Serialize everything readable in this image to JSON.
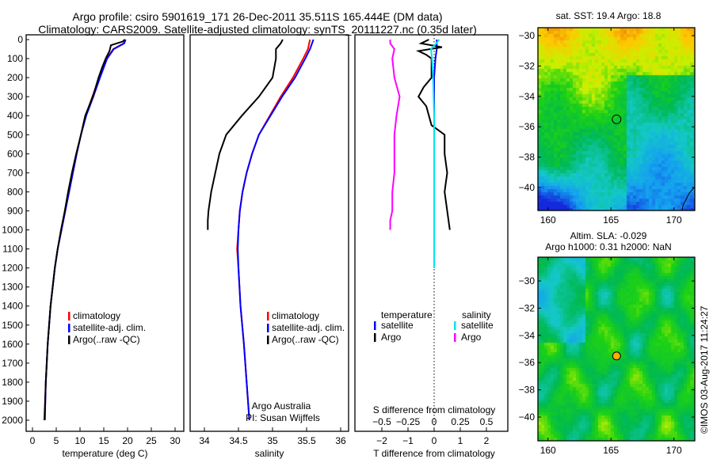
{
  "title_line1": "Argo profile: csiro 5901619_171 26-Dec-2011 35.511S 165.444E (DM data)",
  "title_line2": "Climatology: CARS2009. Satellite-adjusted climatology: synTS_20111227.nc (0.35d later)",
  "credit": "©IMOS 03-Aug-2017 11:24:27",
  "colors": {
    "climatology": "#ff0000",
    "satellite": "#0000ff",
    "argo": "#000000",
    "sal_satellite": "#00e5ee",
    "sal_argo": "#ff00ff"
  },
  "chart_data": [
    {
      "type": "line",
      "name": "temperature",
      "xlabel": "temperature (deg C)",
      "xlim": [
        -1,
        31
      ],
      "ylim": [
        0,
        2100
      ],
      "xticks": [
        0,
        5,
        10,
        15,
        20,
        25,
        30
      ],
      "yticks": [
        0,
        100,
        200,
        300,
        400,
        500,
        600,
        700,
        800,
        900,
        1000,
        1100,
        1200,
        1300,
        1400,
        1500,
        1600,
        1700,
        1800,
        1900,
        2000
      ],
      "legend": [
        "climatology",
        "satellite-adj. clim.",
        "Argo(..raw -QC)"
      ],
      "series": [
        {
          "name": "climatology",
          "depth": [
            0,
            20,
            50,
            100,
            200,
            300,
            400,
            500,
            600,
            700,
            800,
            900,
            1000,
            1100,
            1200,
            1400,
            1600,
            1800,
            2000
          ],
          "values": [
            19.5,
            19.2,
            17,
            15.6,
            14.1,
            12.6,
            11.2,
            10.2,
            9.3,
            8.5,
            7.7,
            6.9,
            6.1,
            5.3,
            4.7,
            3.8,
            3.2,
            2.8,
            2.6
          ]
        },
        {
          "name": "satellite",
          "depth": [
            0,
            20,
            50,
            100,
            200,
            300,
            400,
            500,
            600,
            700,
            800,
            900,
            1000,
            1100,
            1200,
            1400,
            1600,
            1800,
            2000
          ],
          "values": [
            19.6,
            19.3,
            17.1,
            15.7,
            14.2,
            12.8,
            11.3,
            10.2,
            9.3,
            8.5,
            7.7,
            6.9,
            6.1,
            5.3,
            4.7,
            3.8,
            3.2,
            2.8,
            2.6
          ]
        },
        {
          "name": "argo",
          "depth": [
            0,
            10,
            30,
            60,
            100,
            150,
            200,
            300,
            400,
            500,
            600,
            700,
            800,
            900,
            1000,
            1100,
            1200,
            1400,
            1600,
            1800,
            2000
          ],
          "values": [
            19.4,
            19.0,
            16.5,
            16.2,
            15.4,
            14.6,
            13.9,
            12.7,
            11.1,
            10.2,
            9.2,
            8.3,
            7.5,
            6.8,
            6.0,
            5.3,
            4.7,
            3.8,
            3.2,
            2.8,
            2.5
          ]
        }
      ]
    },
    {
      "type": "line",
      "name": "salinity",
      "xlabel": "salinity",
      "xlim": [
        33.8,
        36.1
      ],
      "ylim": [
        0,
        2100
      ],
      "xticks": [
        34,
        34.5,
        35,
        35.5,
        36
      ],
      "legend": [
        "climatology",
        "satellite-adj. clim.",
        "Argo(..raw -QC)"
      ],
      "annotation": [
        "Argo Australia",
        "PI: Susan Wijffels"
      ],
      "series": [
        {
          "name": "climatology",
          "depth": [
            0,
            50,
            100,
            200,
            300,
            400,
            500,
            600,
            700,
            800,
            900,
            1000,
            1100,
            1200,
            1400,
            1600,
            1800,
            2000
          ],
          "values": [
            35.55,
            35.52,
            35.45,
            35.3,
            35.12,
            34.96,
            34.8,
            34.7,
            34.62,
            34.56,
            34.52,
            34.5,
            34.48,
            34.5,
            34.53,
            34.58,
            34.62,
            34.66
          ]
        },
        {
          "name": "satellite",
          "depth": [
            0,
            50,
            100,
            200,
            300,
            400,
            500,
            600,
            700,
            800,
            900,
            1000,
            1100,
            1200,
            1400,
            1600,
            1800,
            2000
          ],
          "values": [
            35.6,
            35.55,
            35.48,
            35.33,
            35.14,
            34.97,
            34.8,
            34.7,
            34.62,
            34.56,
            34.52,
            34.5,
            34.49,
            34.5,
            34.53,
            34.58,
            34.62,
            34.66
          ]
        },
        {
          "name": "argo",
          "depth": [
            0,
            20,
            50,
            100,
            200,
            300,
            400,
            500,
            600,
            700,
            800,
            900,
            950,
            1000
          ],
          "values": [
            35.15,
            35.12,
            35.05,
            35.05,
            35.0,
            34.8,
            34.55,
            34.32,
            34.22,
            34.16,
            34.1,
            34.06,
            34.05,
            34.05
          ]
        }
      ]
    },
    {
      "type": "line",
      "name": "difference",
      "xlabel": "T difference from climatology",
      "x2label": "S difference from climatology",
      "xlim": [
        -2.8,
        2.8
      ],
      "xticks": [
        -2,
        -1,
        0,
        1,
        2
      ],
      "x2ticks": [
        -0.5,
        -0.25,
        0,
        0.25,
        0.5
      ],
      "legend_temperature": {
        "title": "temperature",
        "items": [
          "satellite",
          "Argo"
        ]
      },
      "legend_salinity": {
        "title": "salinity",
        "items": [
          "satellite",
          "Argo"
        ]
      },
      "series": [
        {
          "name": "T satellite",
          "depth": [
            0,
            50,
            100,
            200,
            400,
            600,
            800,
            1000,
            1200
          ],
          "values": [
            0.1,
            0.1,
            0.05,
            0,
            0,
            0,
            0,
            0,
            0
          ]
        },
        {
          "name": "T Argo",
          "depth": [
            0,
            20,
            40,
            60,
            80,
            100,
            150,
            200,
            250,
            300,
            350,
            400,
            450,
            500,
            600,
            700,
            800,
            900,
            1000
          ],
          "values": [
            -0.2,
            -0.5,
            0.3,
            -0.6,
            -0.3,
            -0.1,
            -0.1,
            -0.1,
            -0.4,
            -0.6,
            -0.3,
            -0.2,
            -0.1,
            0.4,
            0.4,
            0.5,
            0.4,
            0.5,
            0.6
          ]
        },
        {
          "name": "S satellite",
          "depth": [
            0,
            20,
            50,
            100,
            200,
            400,
            600,
            800,
            1000,
            1200
          ],
          "values": [
            0.05,
            0.02,
            -0.03,
            -0.02,
            -0.01,
            0,
            0,
            0,
            0,
            0
          ]
        },
        {
          "name": "S Argo",
          "depth": [
            0,
            20,
            50,
            100,
            200,
            300,
            400,
            500,
            600,
            700,
            800,
            900,
            950,
            1000
          ],
          "values": [
            -0.42,
            -0.42,
            -0.38,
            -0.4,
            -0.38,
            -0.33,
            -0.36,
            -0.38,
            -0.38,
            -0.38,
            -0.4,
            -0.4,
            -0.42,
            -0.42
          ]
        }
      ]
    },
    {
      "type": "heatmap",
      "name": "sst_map",
      "title": "sat. SST: 19.4  Argo: 18.8",
      "xticks": [
        160,
        165,
        170
      ],
      "yticks": [
        -30,
        -32,
        -34,
        -36,
        -38,
        -40
      ],
      "xlim": [
        159.2,
        171.7
      ],
      "ylim": [
        -41.5,
        -29.5
      ],
      "marker": {
        "lon": 165.444,
        "lat": -35.511
      }
    },
    {
      "type": "heatmap",
      "name": "sla_map",
      "title1": "Altim. SLA: -0.029",
      "title2": "Argo h1000: 0.31 h2000: NaN",
      "xticks": [
        160,
        165,
        170
      ],
      "yticks": [
        -30,
        -32,
        -34,
        -36,
        -38,
        -40
      ],
      "xlim": [
        159.2,
        171.7
      ],
      "ylim": [
        -41.5,
        -29.5
      ],
      "marker": {
        "lon": 165.444,
        "lat": -35.511
      }
    }
  ]
}
